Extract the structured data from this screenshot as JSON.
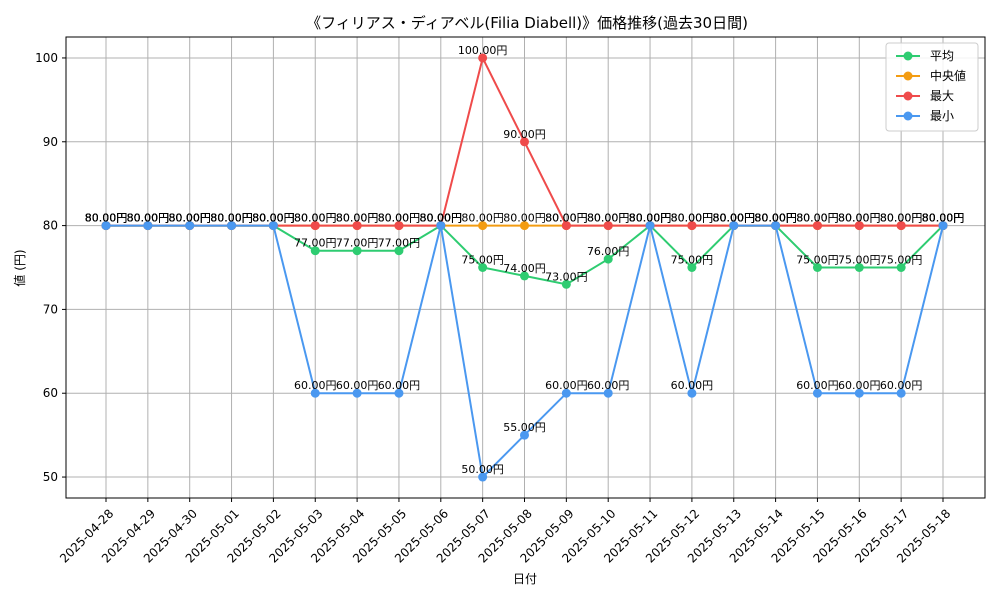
{
  "chart_data": {
    "type": "line",
    "title": "《フィリアス・ディアベル(Filia Diabell)》価格推移(過去30日間)",
    "xlabel": "日付",
    "ylabel": "値 (円)",
    "ylim": [
      47.5,
      102.5
    ],
    "yticks": [
      50,
      60,
      70,
      80,
      90,
      100
    ],
    "grid": true,
    "legend_position": "top-right",
    "unit_suffix": "円",
    "categories": [
      "2025-04-28",
      "2025-04-29",
      "2025-04-30",
      "2025-05-01",
      "2025-05-02",
      "2025-05-03",
      "2025-05-04",
      "2025-05-05",
      "2025-05-06",
      "2025-05-07",
      "2025-05-08",
      "2025-05-09",
      "2025-05-10",
      "2025-05-11",
      "2025-05-12",
      "2025-05-13",
      "2025-05-14",
      "2025-05-15",
      "2025-05-16",
      "2025-05-17",
      "2025-05-18"
    ],
    "series": [
      {
        "name": "平均",
        "color": "#2ecc71",
        "values": [
          80,
          80,
          80,
          80,
          80,
          77,
          77,
          77,
          80,
          75,
          74,
          73,
          76,
          80,
          75,
          80,
          80,
          75,
          75,
          75,
          80
        ]
      },
      {
        "name": "中央値",
        "color": "#f39c12",
        "values": [
          80,
          80,
          80,
          80,
          80,
          80,
          80,
          80,
          80,
          80,
          80,
          80,
          80,
          80,
          80,
          80,
          80,
          80,
          80,
          80,
          80
        ]
      },
      {
        "name": "最大",
        "color": "#ef4b4b",
        "values": [
          80,
          80,
          80,
          80,
          80,
          80,
          80,
          80,
          80,
          100,
          90,
          80,
          80,
          80,
          80,
          80,
          80,
          80,
          80,
          80,
          80
        ]
      },
      {
        "name": "最小",
        "color": "#4a98f0",
        "values": [
          80,
          80,
          80,
          80,
          80,
          60,
          60,
          60,
          80,
          50,
          55,
          60,
          60,
          80,
          60,
          80,
          80,
          60,
          60,
          60,
          80
        ]
      }
    ]
  }
}
